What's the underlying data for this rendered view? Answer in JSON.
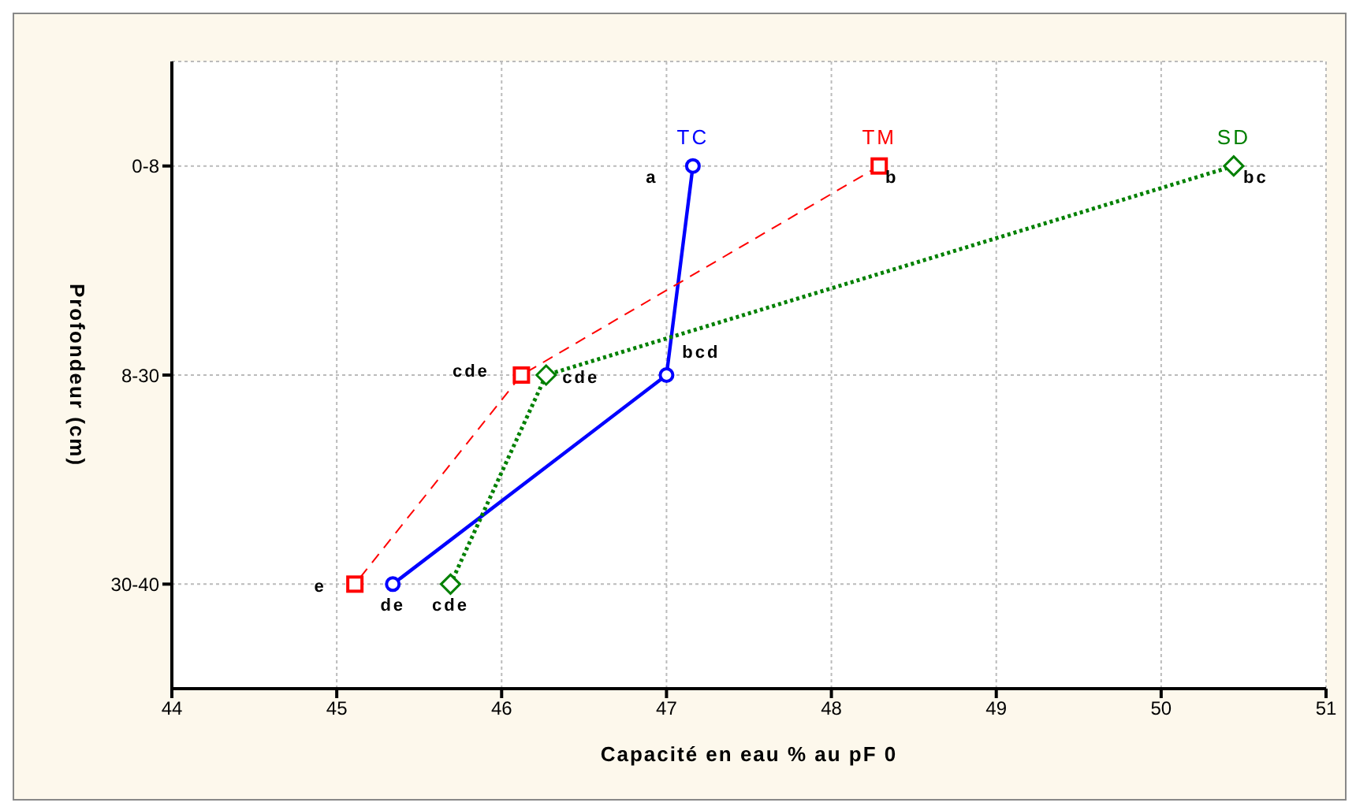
{
  "chart_data": {
    "type": "line",
    "orientation": "horizontal",
    "xlabel": "Capacité en eau % au pF 0",
    "ylabel": "Profondeur (cm)",
    "categories": [
      "0-8",
      "8-30",
      "30-40"
    ],
    "series": [
      {
        "name": "TC",
        "color": "#0000ff",
        "values": [
          47.16,
          47.0,
          45.34
        ],
        "marker": "circle",
        "line_style": "solid",
        "value_labels": [
          "a",
          "bcd",
          "de"
        ]
      },
      {
        "name": "TM",
        "color": "#ff0000",
        "values": [
          48.29,
          46.12,
          45.11
        ],
        "marker": "square",
        "line_style": "dashed",
        "value_labels": [
          "b",
          "cde",
          "e"
        ]
      },
      {
        "name": "SD",
        "color": "#008000",
        "values": [
          50.44,
          46.27,
          45.69
        ],
        "marker": "diamond",
        "line_style": "dotted",
        "value_labels": [
          "bc",
          "cde",
          "cde"
        ]
      }
    ],
    "xlim": [
      44,
      51
    ],
    "xticks": [
      44,
      45,
      46,
      47,
      48,
      49,
      50,
      51
    ],
    "grid": true,
    "legend": false
  }
}
